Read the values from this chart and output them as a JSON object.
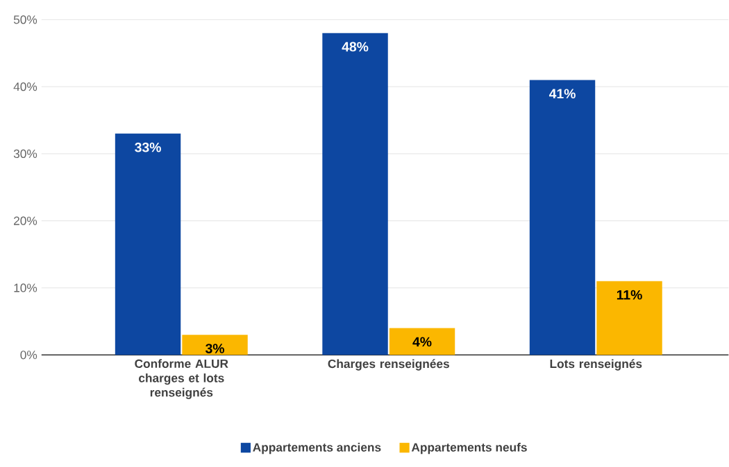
{
  "chart_data": {
    "type": "bar",
    "categories": [
      "Conforme ALUR charges et lots renseignés",
      "Charges renseignées",
      "Lots renseignés"
    ],
    "series": [
      {
        "name": "Appartements anciens",
        "color": "#0d47a1",
        "values": [
          33,
          48,
          41
        ],
        "value_labels": [
          "33%",
          "48%",
          "41%"
        ]
      },
      {
        "name": "Appartements neufs",
        "color": "#fbb700",
        "values": [
          3,
          4,
          11
        ],
        "value_labels": [
          "3%",
          "4%",
          "11%"
        ]
      }
    ],
    "ylim": [
      0,
      50
    ],
    "yticks": [
      {
        "value": 0,
        "label": "0%"
      },
      {
        "value": 10,
        "label": "10%"
      },
      {
        "value": 20,
        "label": "20%"
      },
      {
        "value": 30,
        "label": "30%"
      },
      {
        "value": 40,
        "label": "40%"
      },
      {
        "value": 50,
        "label": "50%"
      }
    ],
    "grid": "y",
    "legend": "bottom"
  }
}
